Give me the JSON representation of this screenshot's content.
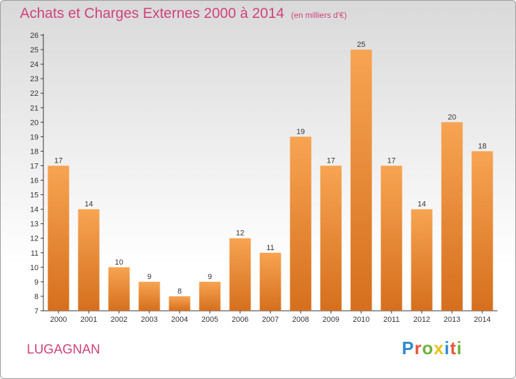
{
  "title": "Achats et Charges Externes 2000 à 2014",
  "subtitle": "(en milliers d'€)",
  "commune": "LUGAGNAN",
  "logo": {
    "letters": [
      "P",
      "r",
      "o",
      "x",
      "i",
      "t",
      "i"
    ],
    "colors": [
      "#2e8bd0",
      "#e8543b",
      "#6fb13a",
      "#e8c21a",
      "#2e8bd0",
      "#e8543b",
      "#6fb13a"
    ]
  },
  "chart_data": {
    "type": "bar",
    "title": "Achats et Charges Externes 2000 à 2014",
    "subtitle": "(en milliers d'€)",
    "categories": [
      "2000",
      "2001",
      "2002",
      "2003",
      "2004",
      "2005",
      "2006",
      "2007",
      "2008",
      "2009",
      "2010",
      "2011",
      "2012",
      "2013",
      "2014"
    ],
    "values": [
      17,
      14,
      10,
      9,
      8,
      9,
      12,
      11,
      19,
      17,
      25,
      17,
      14,
      20,
      18
    ],
    "ylim": [
      7,
      26
    ],
    "yticks": [
      7,
      8,
      9,
      10,
      11,
      12,
      13,
      14,
      15,
      16,
      17,
      18,
      19,
      20,
      21,
      22,
      23,
      24,
      25,
      26
    ],
    "grid": false,
    "bar_color": "#f0913a"
  }
}
